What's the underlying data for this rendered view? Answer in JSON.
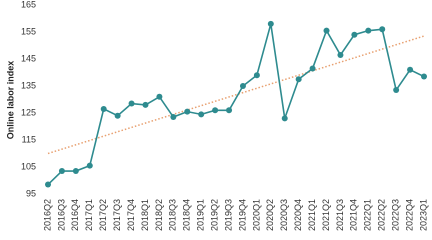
{
  "chart_data": {
    "type": "line",
    "y_label": "Online labor index",
    "categories": [
      "2016Q2",
      "2016Q3",
      "2016Q4",
      "2017Q1",
      "2017Q2",
      "2017Q3",
      "2017Q4",
      "2018Q1",
      "2018Q2",
      "2018Q3",
      "2018Q4",
      "2019Q1",
      "2019Q2",
      "2019Q3",
      "2019Q4",
      "2020Q1",
      "2020Q2",
      "2020Q3",
      "2020Q4",
      "2021Q1",
      "2021Q2",
      "2021Q3",
      "2021Q4",
      "2022Q1",
      "2022Q2",
      "2022Q3",
      "2022Q4",
      "2023Q1"
    ],
    "values": [
      98.5,
      103.5,
      103.5,
      105.5,
      126.5,
      124,
      128.5,
      128,
      131,
      123.5,
      125.5,
      124.5,
      126,
      126,
      135,
      139,
      158,
      123,
      137.5,
      141.5,
      155.5,
      146.5,
      154,
      155.5,
      156,
      133.5,
      141,
      138.5
    ],
    "color": "#2e8b8f",
    "trend": {
      "start": 110,
      "end": 153.5,
      "color": "#e8a070"
    },
    "ylim": [
      95,
      165
    ],
    "yticks": [
      95,
      105,
      115,
      125,
      135,
      145,
      155,
      165
    ]
  }
}
